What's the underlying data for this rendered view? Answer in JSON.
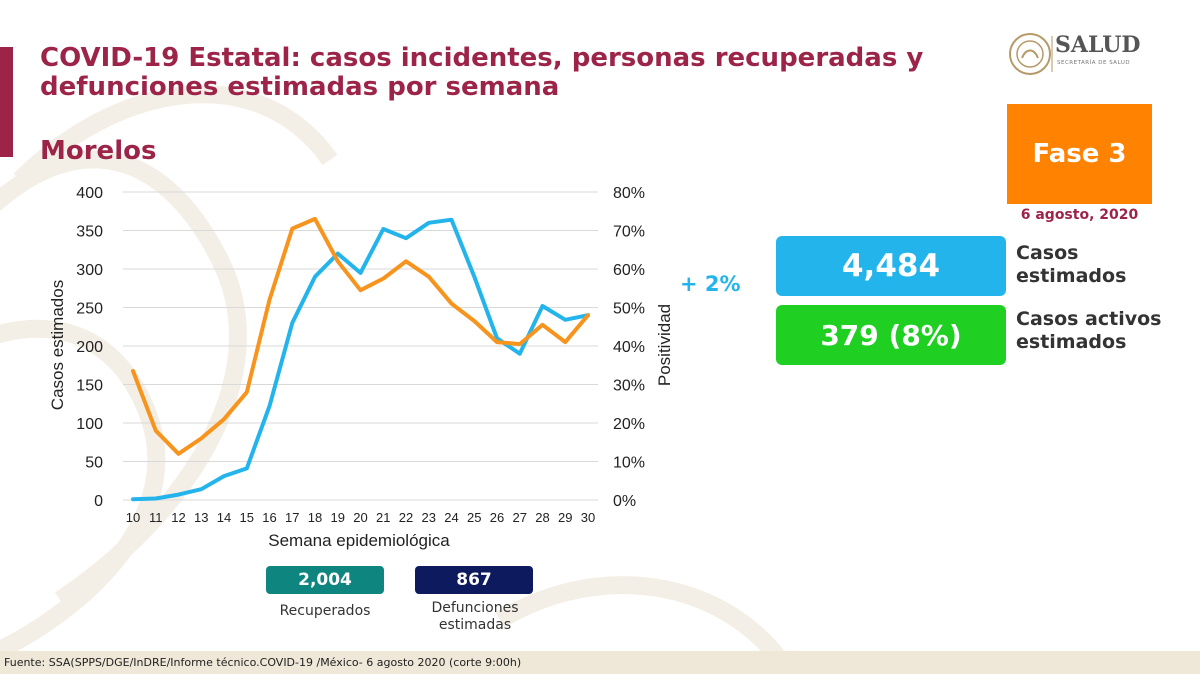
{
  "header": {
    "title_line1": "COVID-19 Estatal: casos incidentes, personas recuperadas y",
    "title_line2": "defunciones estimadas por semana",
    "state": "Morelos"
  },
  "logo": {
    "text": "SALUD",
    "subtext": "SECRETARÍA DE SALUD"
  },
  "phase": {
    "label": "Fase 3",
    "color": "#ff8200",
    "date": "6 agosto, 2020"
  },
  "kpis": {
    "cases_value": "4,484",
    "cases_label_1": "Casos",
    "cases_label_2": "estimados",
    "active_value": "379 (8%)",
    "active_label_1": "Casos activos",
    "active_label_2": "estimados"
  },
  "positivity_change": "+ 2%",
  "summary": {
    "recovered_value": "2,004",
    "recovered_label": "Recuperados",
    "deaths_value": "867",
    "deaths_label_1": "Defunciones",
    "deaths_label_2": "estimadas"
  },
  "footer": "Fuente: SSA(SPPS/DGE/InDRE/Informe técnico.COVID-19 /México- 6 agosto 2020 (corte 9:00h)",
  "chart_data": {
    "type": "line",
    "xlabel": "Semana epidemiológica",
    "ylabel": "Casos estimados",
    "y2label": "Positividad",
    "x": [
      10,
      11,
      12,
      13,
      14,
      15,
      16,
      17,
      18,
      19,
      20,
      21,
      22,
      23,
      24,
      25,
      26,
      27,
      28,
      29,
      30
    ],
    "ylim": [
      0,
      400
    ],
    "yticks": [
      "0",
      "50",
      "100",
      "150",
      "200",
      "250",
      "300",
      "350",
      "400"
    ],
    "y2lim": [
      0,
      0.8
    ],
    "y2ticks": [
      "0%",
      "10%",
      "20%",
      "30%",
      "40%",
      "50%",
      "60%",
      "70%",
      "80%"
    ],
    "grid": true,
    "series": [
      {
        "axis": "left",
        "color": "#24b4ec",
        "values": [
          1,
          2,
          7,
          14,
          31,
          41,
          122,
          230,
          290,
          320,
          295,
          352,
          340,
          360,
          364,
          290,
          210,
          190,
          252,
          234,
          240
        ]
      },
      {
        "axis": "right",
        "color": "#f7941d",
        "values": [
          0.335,
          0.18,
          0.12,
          0.16,
          0.21,
          0.28,
          0.52,
          0.705,
          0.73,
          0.62,
          0.545,
          0.575,
          0.62,
          0.58,
          0.51,
          0.465,
          0.41,
          0.405,
          0.455,
          0.41,
          0.48
        ]
      }
    ]
  }
}
